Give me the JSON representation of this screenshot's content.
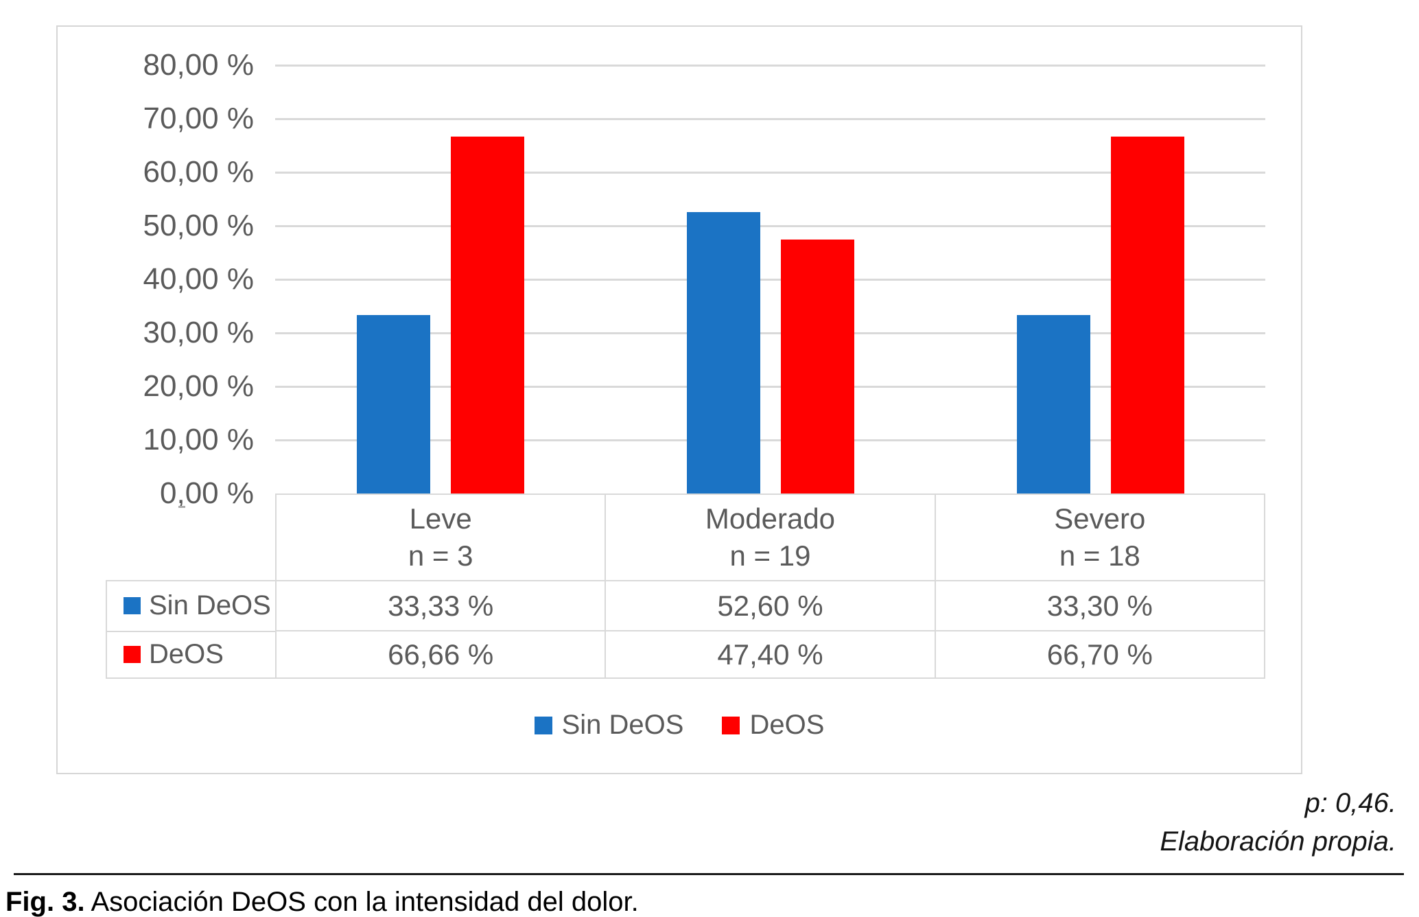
{
  "figure": {
    "p_value_note": "p: 0,46.",
    "source_note": "Elaboración propia.",
    "caption_prefix": "Fig. 3.",
    "caption_text": " Asociación DeOS con la intensidad del dolor."
  },
  "colors": {
    "series_blue": "#1b73c4",
    "series_red": "#ff0000",
    "chart_text_gray": "#5a5a5a",
    "grid_gray": "#d9d9d9"
  },
  "chart_data": {
    "type": "bar",
    "title": "",
    "xlabel": "",
    "ylabel": "",
    "categories": [
      "Leve",
      "Moderado",
      "Severo"
    ],
    "category_sublabels": [
      "n = 3",
      "n = 19",
      "n = 18"
    ],
    "series": [
      {
        "name": "Sin DeOS",
        "color": "#1b73c4",
        "values": [
          33.33,
          52.6,
          33.3
        ],
        "value_labels": [
          "33,33 %",
          "52,60 %",
          "33,30 %"
        ]
      },
      {
        "name": "DeOS",
        "color": "#ff0000",
        "values": [
          66.66,
          47.4,
          66.7
        ],
        "value_labels": [
          "66,66 %",
          "47,40 %",
          "66,70 %"
        ]
      }
    ],
    "ylim": [
      0,
      80
    ],
    "ytick_step": 10,
    "ytick_labels": [
      "0,00 %",
      "10,00 %",
      "20,00 %",
      "30,00 %",
      "40,00 %",
      "50,00 %",
      "60,00 %",
      "70,00 %",
      "80,00 %"
    ],
    "grid": true,
    "legend_position": "bottom",
    "has_data_table": true
  }
}
